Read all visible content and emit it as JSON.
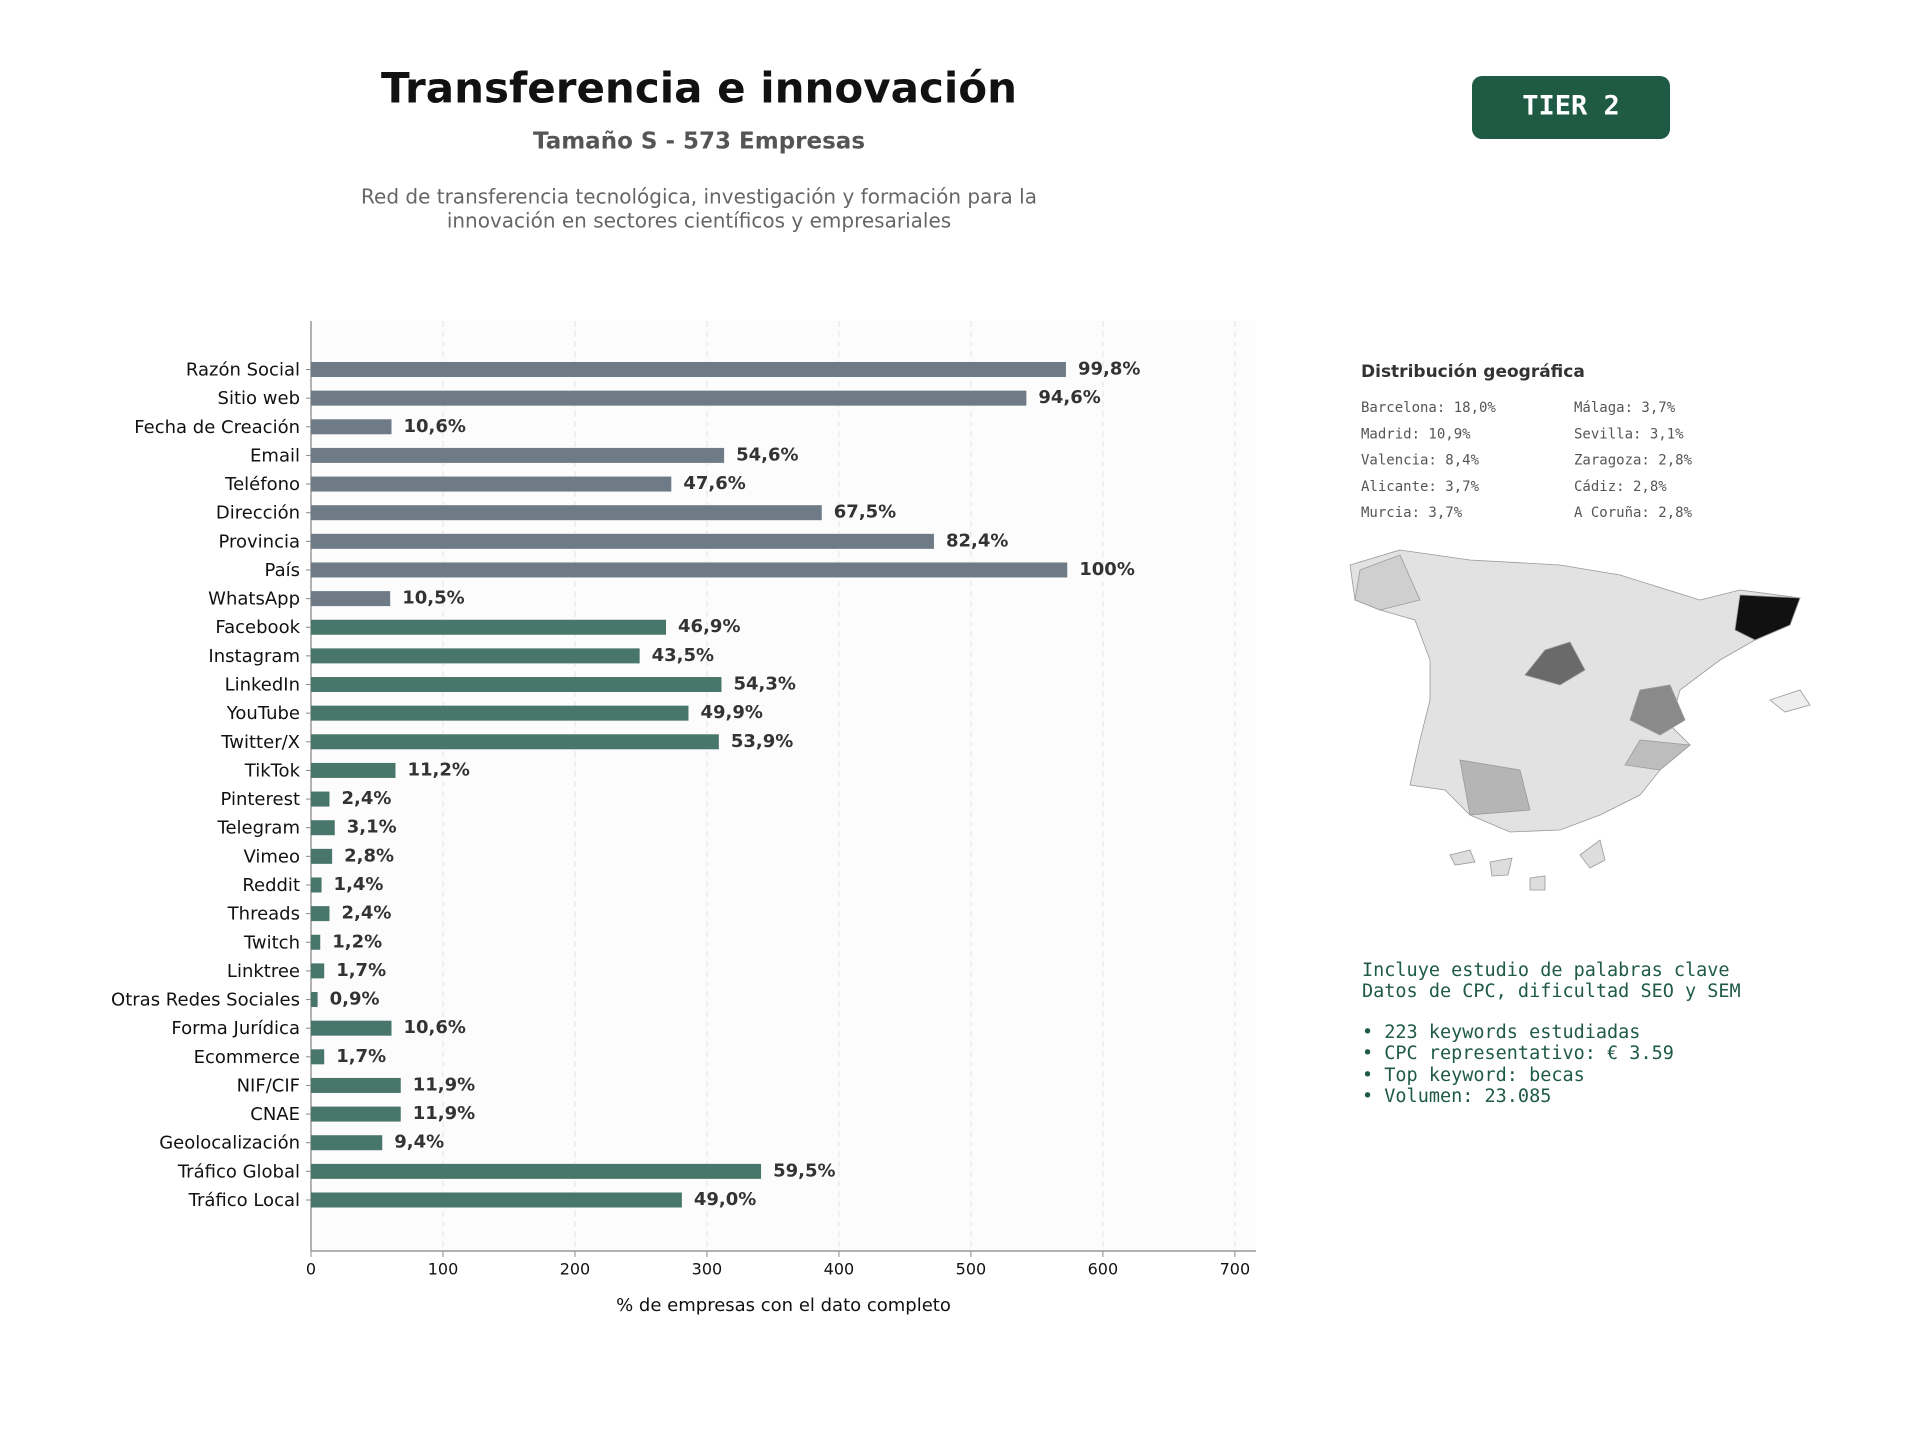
{
  "header": {
    "title": "Transferencia e innovación",
    "subtitle": "Tamaño S - 573 Empresas",
    "description": [
      "Red de transferencia tecnológica, investigación y formación para la",
      "innovación en sectores científicos y empresariales"
    ]
  },
  "badge": "TIER 2",
  "geo": {
    "title": "Distribución geográfica",
    "items": [
      "Barcelona: 18,0%",
      "Madrid: 10,9%",
      "Valencia: 8,4%",
      "Alicante: 3,7%",
      "Murcia: 3,7%",
      "Málaga: 3,7%",
      "Sevilla: 3,1%",
      "Zaragoza: 2,8%",
      "Cádiz: 2,8%",
      "A Coruña: 2,8%"
    ]
  },
  "keywords": [
    "Incluye estudio de palabras clave",
    "Datos de CPC, dificultad SEO y SEM",
    "• 223 keywords estudiadas",
    "• CPC representativo: € 3.59",
    "• Top keyword: becas",
    "• Volumen: 23.085"
  ],
  "chart_data": {
    "type": "barh",
    "xlabel": "% de empresas con el dato completo",
    "categories": [
      "Razón Social",
      "Sitio web",
      "Fecha de Creación",
      "Email",
      "Teléfono",
      "Dirección",
      "Provincia",
      "País",
      "WhatsApp",
      "Facebook",
      "Instagram",
      "LinkedIn",
      "YouTube",
      "Twitter/X",
      "TikTok",
      "Pinterest",
      "Telegram",
      "Vimeo",
      "Reddit",
      "Threads",
      "Twitch",
      "Linktree",
      "Otras Redes Sociales",
      "Forma Jurídica",
      "Ecommerce",
      "NIF/CIF",
      "CNAE",
      "Geolocalización",
      "Tráfico Global",
      "Tráfico Local"
    ],
    "values": [
      572,
      542,
      61,
      313,
      273,
      387,
      472,
      573,
      60,
      269,
      249,
      311,
      286,
      309,
      64,
      14,
      18,
      16,
      8,
      14,
      7,
      10,
      5,
      61,
      10,
      68,
      68,
      54,
      341,
      281
    ],
    "value_labels": [
      "99,8%",
      "94,6%",
      "10,6%",
      "54,6%",
      "47,6%",
      "67,5%",
      "82,4%",
      "100%",
      "10,5%",
      "46,9%",
      "43,5%",
      "54,3%",
      "49,9%",
      "53,9%",
      "11,2%",
      "2,4%",
      "3,1%",
      "2,8%",
      "1,4%",
      "2,4%",
      "1,2%",
      "1,7%",
      "0,9%",
      "10,6%",
      "1,7%",
      "11,9%",
      "11,9%",
      "9,4%",
      "59,5%",
      "49,0%"
    ],
    "colors": [
      "#6e7b87",
      "#6e7b87",
      "#6e7b87",
      "#6e7b87",
      "#6e7b87",
      "#6e7b87",
      "#6e7b87",
      "#6e7b87",
      "#6e7b87",
      "#48766a",
      "#48766a",
      "#48766a",
      "#48766a",
      "#48766a",
      "#48766a",
      "#48766a",
      "#48766a",
      "#48766a",
      "#48766a",
      "#48766a",
      "#48766a",
      "#48766a",
      "#48766a",
      "#48766a",
      "#48766a",
      "#48766a",
      "#48766a",
      "#48766a",
      "#48766a",
      "#48766a"
    ],
    "xlim": [
      0,
      716
    ],
    "xticks": [
      0,
      100,
      200,
      300,
      400,
      500,
      600,
      700
    ],
    "grid": true
  }
}
